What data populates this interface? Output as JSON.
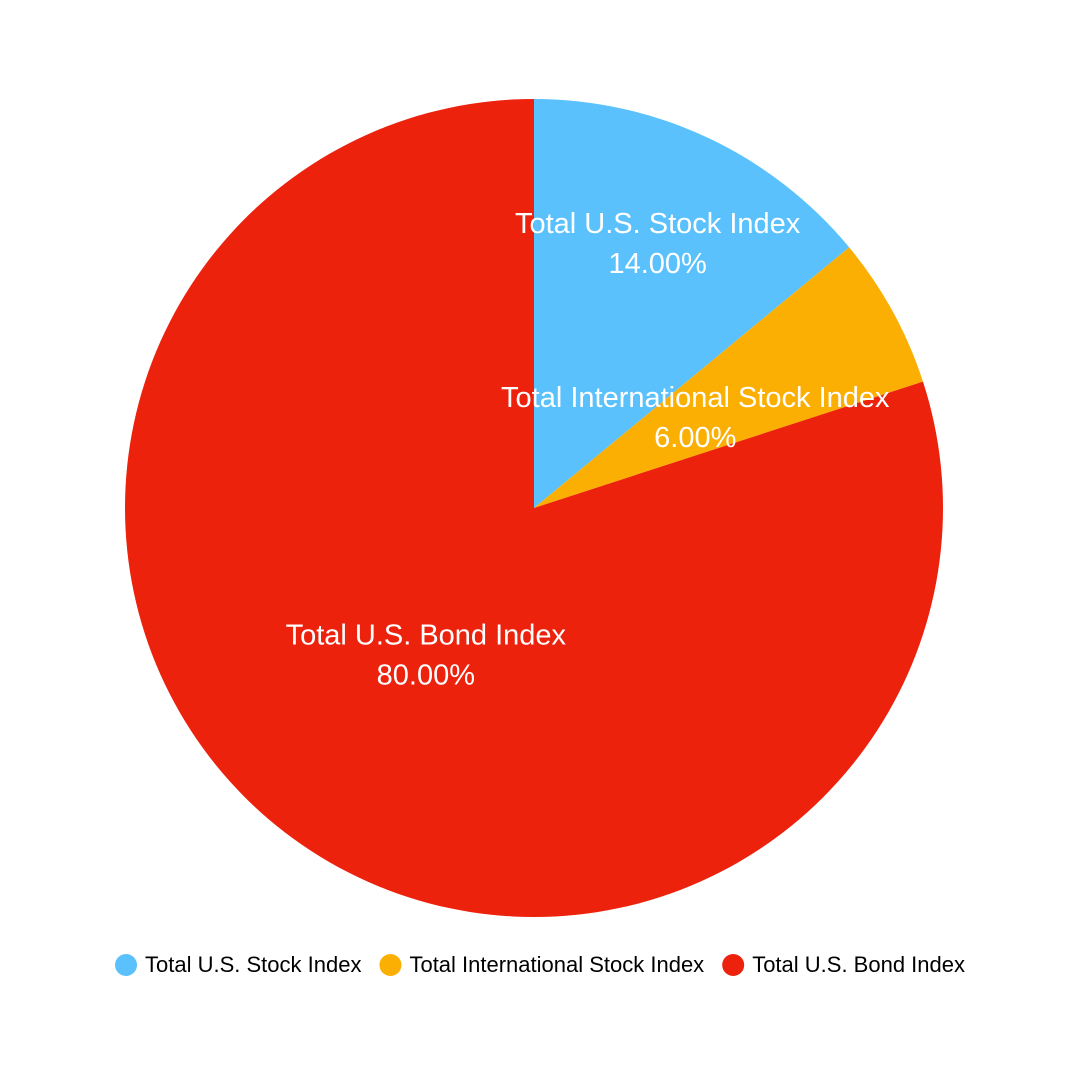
{
  "chart_data": {
    "type": "pie",
    "categories": [
      "Total U.S. Stock Index",
      "Total International Stock Index",
      "Total U.S. Bond Index"
    ],
    "values": [
      14,
      6,
      80
    ],
    "value_labels": [
      "14.00%",
      "6.00%",
      "80.00%"
    ],
    "colors": [
      "#5ac1fd",
      "#fbaf03",
      "#ed220d"
    ],
    "legend": "bottom"
  }
}
